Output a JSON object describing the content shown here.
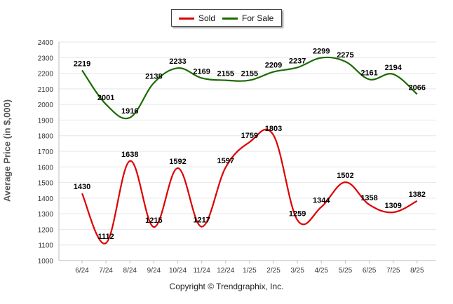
{
  "legend": {
    "sold_label": "Sold",
    "forsale_label": "For Sale"
  },
  "copyright": "Copyright © Trendgraphix, Inc.",
  "chart_data": {
    "type": "line",
    "ylabel": "Average Price (in $,000)",
    "ylim": [
      1000,
      2400
    ],
    "yticks": [
      1000,
      1100,
      1200,
      1300,
      1400,
      1500,
      1600,
      1700,
      1800,
      1900,
      2000,
      2100,
      2200,
      2300,
      2400
    ],
    "categories": [
      "6/24",
      "7/24",
      "8/24",
      "9/24",
      "10/24",
      "11/24",
      "12/24",
      "1/25",
      "2/25",
      "3/25",
      "4/25",
      "5/25",
      "6/25",
      "7/25",
      "8/25"
    ],
    "series": [
      {
        "name": "Sold",
        "color": "#dd0000",
        "values": [
          1430,
          1112,
          1638,
          1215,
          1592,
          1217,
          1597,
          1759,
          1803,
          1259,
          1344,
          1502,
          1358,
          1309,
          1382
        ]
      },
      {
        "name": "For Sale",
        "color": "#1a6b00",
        "values": [
          2219,
          2001,
          1916,
          2138,
          2233,
          2169,
          2155,
          2155,
          2209,
          2237,
          2299,
          2275,
          2161,
          2194,
          2066
        ]
      }
    ],
    "grid": true,
    "legend_position": "top-center"
  }
}
